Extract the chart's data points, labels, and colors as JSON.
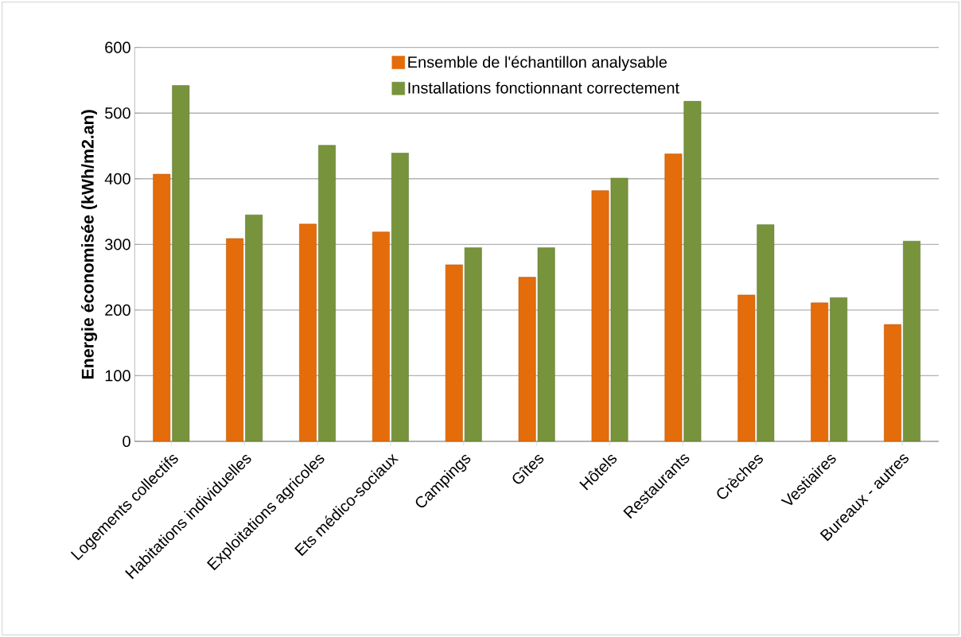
{
  "chart_data": {
    "type": "bar",
    "ylabel": "**Energie économisée (kWh/m2.an)**",
    "categories": [
      "Logements collectifs",
      "Habitations individuelles",
      "Exploitations agricoles",
      "Ets médico-sociaux",
      "Campings",
      "Gîtes",
      "Hôtels",
      "Restaurants",
      "Crèches",
      "Vestiaires",
      "Bureaux - autres"
    ],
    "series": [
      {
        "name": "Ensemble de l'échantillon analysable",
        "color": "#e46c0a",
        "values": [
          407,
          309,
          331,
          319,
          269,
          250,
          382,
          438,
          223,
          211,
          178
        ]
      },
      {
        "name": "Installations fonctionnant correctement",
        "color": "#77933c",
        "values": [
          542,
          345,
          451,
          439,
          295,
          295,
          401,
          518,
          330,
          219,
          305
        ]
      }
    ],
    "ylim": [
      0,
      600
    ],
    "yticks": [
      0,
      100,
      200,
      300,
      400,
      500,
      600
    ],
    "grid": "y",
    "legend": "top"
  }
}
